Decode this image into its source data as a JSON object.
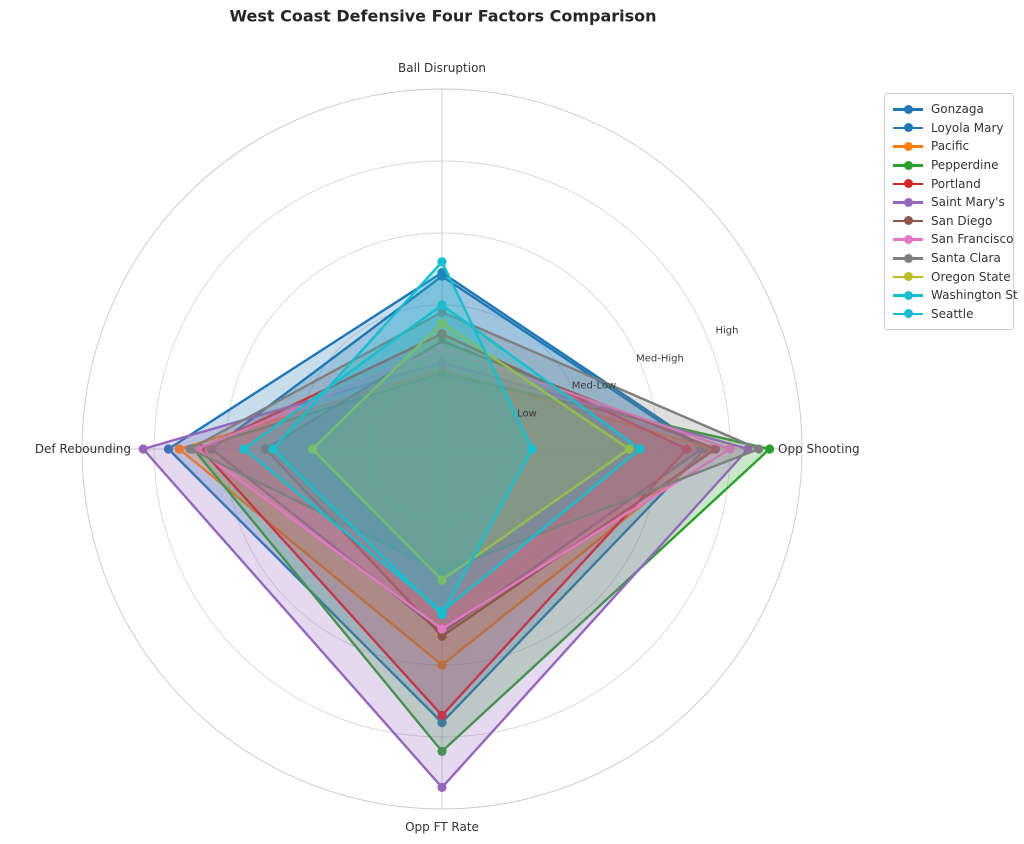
{
  "title": "West Coast Defensive Four Factors Comparison",
  "chart_data": {
    "type": "radar",
    "axes": [
      "Ball Disruption",
      "Opp Shooting",
      "Opp FT Rate",
      "Def Rebounding"
    ],
    "radial_ticks": {
      "values": [
        1,
        2,
        3,
        4
      ],
      "labels": [
        "Low",
        "Med-Low",
        "Med-High",
        "High"
      ]
    },
    "rlim": [
      0,
      5
    ],
    "grid": true,
    "legend_position": "upper right",
    "series": [
      {
        "name": "Gonzaga",
        "color": "#1f77b4",
        "values": [
          2.45,
          3.65,
          3.8,
          3.8
        ]
      },
      {
        "name": "Loyola Mary",
        "color": "#1f77b4",
        "values": [
          2.4,
          3.6,
          2.55,
          3.2
        ]
      },
      {
        "name": "Pacific",
        "color": "#ff7f0e",
        "values": [
          1.1,
          3.75,
          3.0,
          3.65
        ]
      },
      {
        "name": "Pepperdine",
        "color": "#2ca02c",
        "values": [
          1.05,
          4.55,
          4.2,
          3.45
        ]
      },
      {
        "name": "Portland",
        "color": "#d62728",
        "values": [
          1.6,
          3.4,
          3.7,
          3.35
        ]
      },
      {
        "name": "Saint Mary's",
        "color": "#9467bd",
        "values": [
          1.2,
          4.25,
          4.7,
          4.15
        ]
      },
      {
        "name": "San Diego",
        "color": "#8c564b",
        "values": [
          1.5,
          3.8,
          2.6,
          2.45
        ]
      },
      {
        "name": "San Francisco",
        "color": "#e377c2",
        "values": [
          1.4,
          4.0,
          2.5,
          3.4
        ]
      },
      {
        "name": "Santa Clara",
        "color": "#7f7f7f",
        "values": [
          1.9,
          4.4,
          1.7,
          3.5
        ]
      },
      {
        "name": "Oregon State",
        "color": "#bcbd22",
        "values": [
          1.75,
          2.6,
          1.82,
          1.8
        ]
      },
      {
        "name": "Washington St",
        "color": "#17becf",
        "values": [
          2.0,
          2.75,
          2.26,
          2.75
        ]
      },
      {
        "name": "Seattle",
        "color": "#17becf",
        "values": [
          2.6,
          1.25,
          2.3,
          2.35
        ]
      }
    ]
  }
}
